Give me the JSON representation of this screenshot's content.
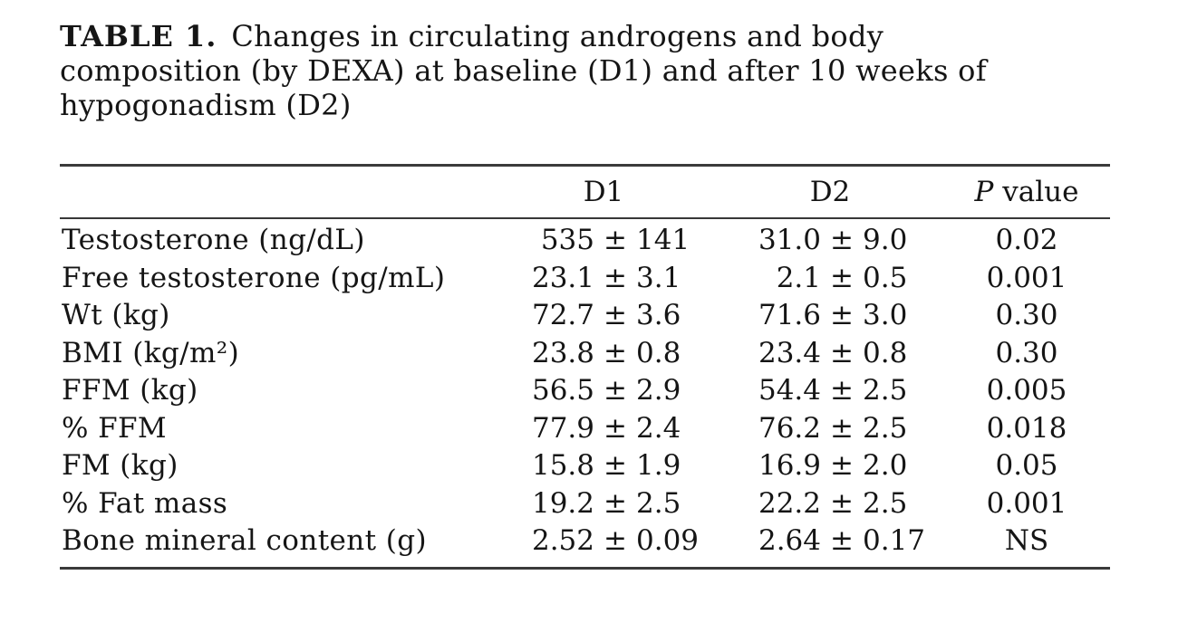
{
  "caption": {
    "label": "TABLE 1.",
    "lines": [
      "Changes in circulating androgens and body",
      "composition (by DEXA) at baseline (D1) and after 10 weeks of",
      "hypogonadism (D2)"
    ]
  },
  "table": {
    "plus_minus": "±",
    "header": {
      "col_label": "",
      "col_d1": "D1",
      "col_d2": "D2",
      "col_p_italic": "P",
      "col_p_rest": " value"
    },
    "rows": [
      {
        "label": "Testosterone (ng/dL)",
        "d1_mean": "535",
        "d1_sd": "141",
        "d2_mean": "31.0",
        "d2_sd": "9.0",
        "p": "0.02"
      },
      {
        "label": "Free testosterone (pg/mL)",
        "d1_mean": "23.1",
        "d1_sd": "3.1",
        "d2_mean": "2.1",
        "d2_sd": "0.5",
        "p": "0.001"
      },
      {
        "label": "Wt (kg)",
        "d1_mean": "72.7",
        "d1_sd": "3.6",
        "d2_mean": "71.6",
        "d2_sd": "3.0",
        "p": "0.30"
      },
      {
        "label": "BMI (kg/m²)",
        "d1_mean": "23.8",
        "d1_sd": "0.8",
        "d2_mean": "23.4",
        "d2_sd": "0.8",
        "p": "0.30"
      },
      {
        "label": "FFM (kg)",
        "d1_mean": "56.5",
        "d1_sd": "2.9",
        "d2_mean": "54.4",
        "d2_sd": "2.5",
        "p": "0.005"
      },
      {
        "label": "% FFM",
        "d1_mean": "77.9",
        "d1_sd": "2.4",
        "d2_mean": "76.2",
        "d2_sd": "2.5",
        "p": "0.018"
      },
      {
        "label": "FM (kg)",
        "d1_mean": "15.8",
        "d1_sd": "1.9",
        "d2_mean": "16.9",
        "d2_sd": "2.0",
        "p": "0.05"
      },
      {
        "label": "% Fat mass",
        "d1_mean": "19.2",
        "d1_sd": "2.5",
        "d2_mean": "22.2",
        "d2_sd": "2.5",
        "p": "0.001"
      },
      {
        "label": "Bone mineral content (g)",
        "d1_mean": "2.52",
        "d1_sd": "0.09",
        "d2_mean": "2.64",
        "d2_sd": "0.17",
        "p": "NS"
      }
    ]
  }
}
